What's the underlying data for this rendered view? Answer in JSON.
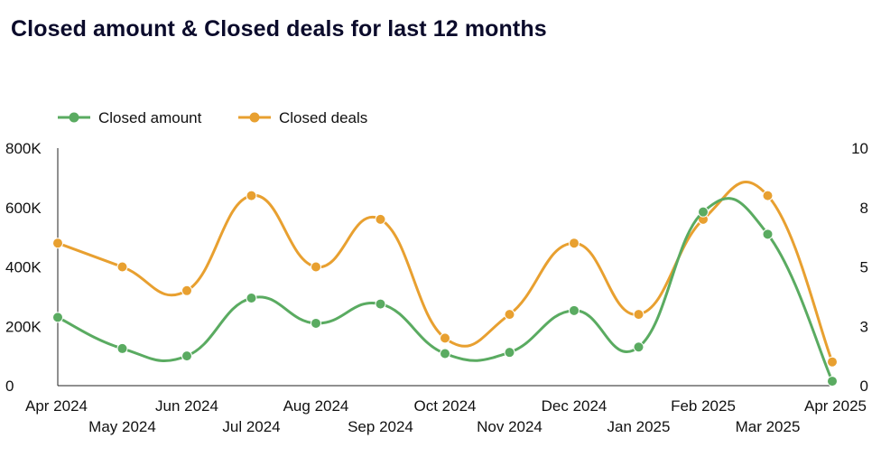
{
  "title": "Closed amount & Closed deals for last 12 months",
  "chart_data": {
    "type": "line",
    "title": "Closed amount & Closed deals for last 12 months",
    "categories": [
      "Apr 2024",
      "May 2024",
      "Jun 2024",
      "Jul 2024",
      "Aug 2024",
      "Sep 2024",
      "Oct 2024",
      "Nov 2024",
      "Dec 2024",
      "Jan 2025",
      "Feb 2025",
      "Mar 2025",
      "Apr 2025"
    ],
    "series": [
      {
        "name": "Closed amount",
        "axis": "left",
        "color": "#5aab61",
        "values": [
          230000,
          125000,
          100000,
          295000,
          210000,
          275000,
          108000,
          112000,
          253000,
          130000,
          585000,
          510000,
          15000
        ]
      },
      {
        "name": "Closed deals",
        "axis": "right",
        "color": "#e8a030",
        "values": [
          6,
          5,
          4,
          8,
          5,
          7,
          2,
          3,
          6,
          3,
          7,
          8,
          1
        ]
      }
    ],
    "left_axis": {
      "min": 0,
      "max": 800000,
      "ticks": [
        0,
        200000,
        400000,
        600000,
        800000
      ],
      "tick_labels": [
        "0",
        "200K",
        "400K",
        "600K",
        "800K"
      ]
    },
    "right_axis": {
      "min": 0,
      "max": 10,
      "ticks": [
        0,
        2.5,
        5,
        7.5,
        10
      ],
      "tick_labels": [
        "0",
        "3",
        "5",
        "8",
        "10"
      ]
    },
    "legend_position": "top-left",
    "grid": false,
    "smooth": true
  }
}
